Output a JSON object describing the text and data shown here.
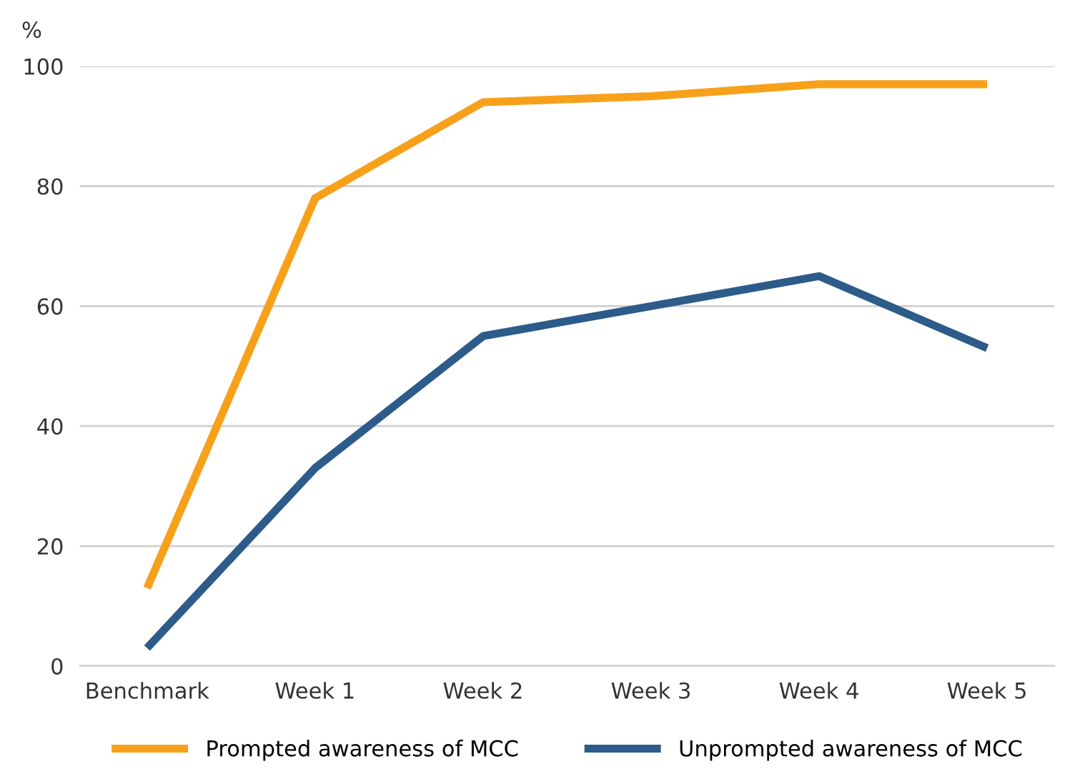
{
  "chart_data": {
    "type": "line",
    "ylabel": "%",
    "categories": [
      "Benchmark",
      "Week 1",
      "Week 2",
      "Week 3",
      "Week 4",
      "Week 5"
    ],
    "series": [
      {
        "name": "Prompted awareness of MCC",
        "color": "#f7a11a",
        "values": [
          13,
          78,
          94,
          95,
          97,
          97
        ]
      },
      {
        "name": "Unprompted awareness of MCC",
        "color": "#2d5b8a",
        "values": [
          3,
          33,
          55,
          60,
          65,
          53
        ]
      }
    ],
    "ylim": [
      0,
      100
    ],
    "yticks": [
      0,
      20,
      40,
      60,
      80,
      100
    ],
    "grid": "y",
    "legend": "bottom",
    "marker": "none",
    "line_style": "solid"
  }
}
